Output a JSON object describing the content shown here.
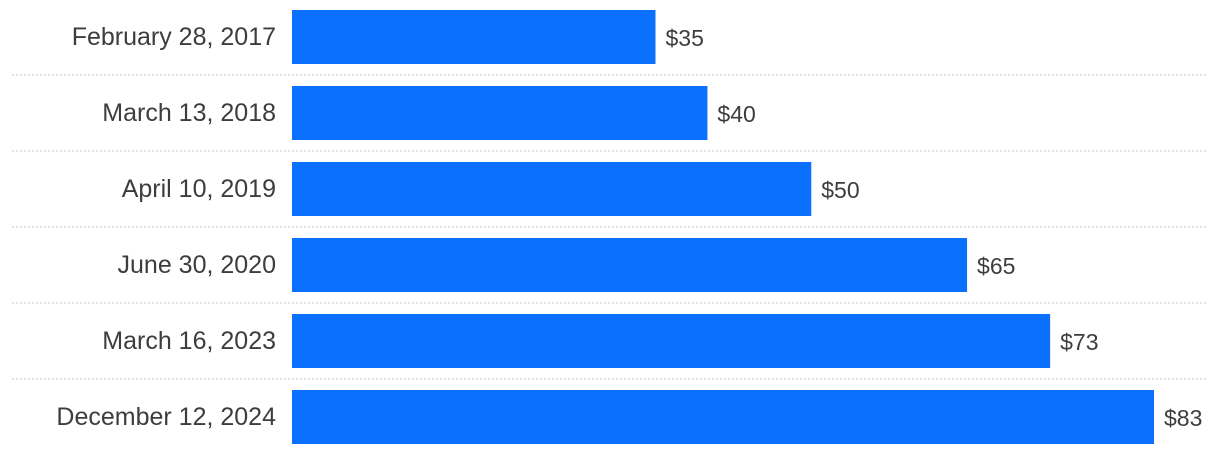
{
  "chart_data": {
    "type": "bar",
    "orientation": "horizontal",
    "categories": [
      "February 28, 2017",
      "March 13, 2018",
      "April 10, 2019",
      "June 30, 2020",
      "March 16, 2023",
      "December 12, 2024"
    ],
    "values": [
      35,
      40,
      50,
      65,
      73,
      83
    ],
    "value_labels": [
      "$35",
      "$40",
      "$50",
      "$65",
      "$73",
      "$83"
    ],
    "title": "",
    "xlabel": "",
    "ylabel": "",
    "xlim": [
      0,
      83
    ],
    "grid": true,
    "colors": {
      "bar": "#0b70fe",
      "text": "#3d3d3d",
      "grid": "#c8c8c8"
    }
  }
}
